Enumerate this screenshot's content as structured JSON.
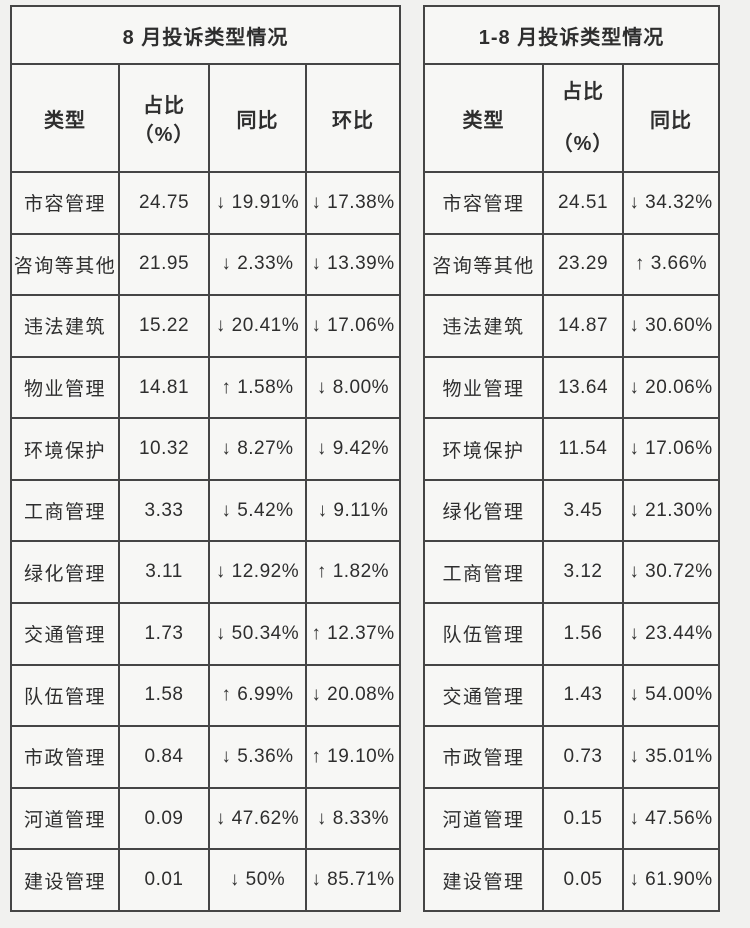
{
  "page": {
    "background_color": "#f1f1ef",
    "border_color": "#454545",
    "text_color": "#2e2e2e"
  },
  "tables": [
    {
      "title": "8 月投诉类型情况",
      "columns": [
        "类型",
        "占比（%）",
        "同比",
        "环比"
      ],
      "rows": [
        [
          "市容管理",
          "24.75",
          "↓ 19.91%",
          "↓ 17.38%"
        ],
        [
          "咨询等其他",
          "21.95",
          "↓ 2.33%",
          "↓ 13.39%"
        ],
        [
          "违法建筑",
          "15.22",
          "↓ 20.41%",
          "↓ 17.06%"
        ],
        [
          "物业管理",
          "14.81",
          "↑ 1.58%",
          "↓ 8.00%"
        ],
        [
          "环境保护",
          "10.32",
          "↓ 8.27%",
          "↓ 9.42%"
        ],
        [
          "工商管理",
          "3.33",
          "↓ 5.42%",
          "↓ 9.11%"
        ],
        [
          "绿化管理",
          "3.11",
          "↓ 12.92%",
          "↑ 1.82%"
        ],
        [
          "交通管理",
          "1.73",
          "↓ 50.34%",
          "↑ 12.37%"
        ],
        [
          "队伍管理",
          "1.58",
          "↑ 6.99%",
          "↓ 20.08%"
        ],
        [
          "市政管理",
          "0.84",
          "↓ 5.36%",
          "↑ 19.10%"
        ],
        [
          "河道管理",
          "0.09",
          "↓ 47.62%",
          "↓ 8.33%"
        ],
        [
          "建设管理",
          "0.01",
          "↓ 50%",
          "↓ 85.71%"
        ]
      ]
    },
    {
      "title": "1-8 月投诉类型情况",
      "columns": [
        "类型",
        "占比\n（%）",
        "同比"
      ],
      "rows": [
        [
          "市容管理",
          "24.51",
          "↓ 34.32%"
        ],
        [
          "咨询等其他",
          "23.29",
          "↑ 3.66%"
        ],
        [
          "违法建筑",
          "14.87",
          "↓ 30.60%"
        ],
        [
          "物业管理",
          "13.64",
          "↓ 20.06%"
        ],
        [
          "环境保护",
          "11.54",
          "↓ 17.06%"
        ],
        [
          "绿化管理",
          "3.45",
          "↓ 21.30%"
        ],
        [
          "工商管理",
          "3.12",
          "↓ 30.72%"
        ],
        [
          "队伍管理",
          "1.56",
          "↓ 23.44%"
        ],
        [
          "交通管理",
          "1.43",
          "↓ 54.00%"
        ],
        [
          "市政管理",
          "0.73",
          "↓ 35.01%"
        ],
        [
          "河道管理",
          "0.15",
          "↓ 47.56%"
        ],
        [
          "建设管理",
          "0.05",
          "↓ 61.90%"
        ]
      ]
    }
  ]
}
